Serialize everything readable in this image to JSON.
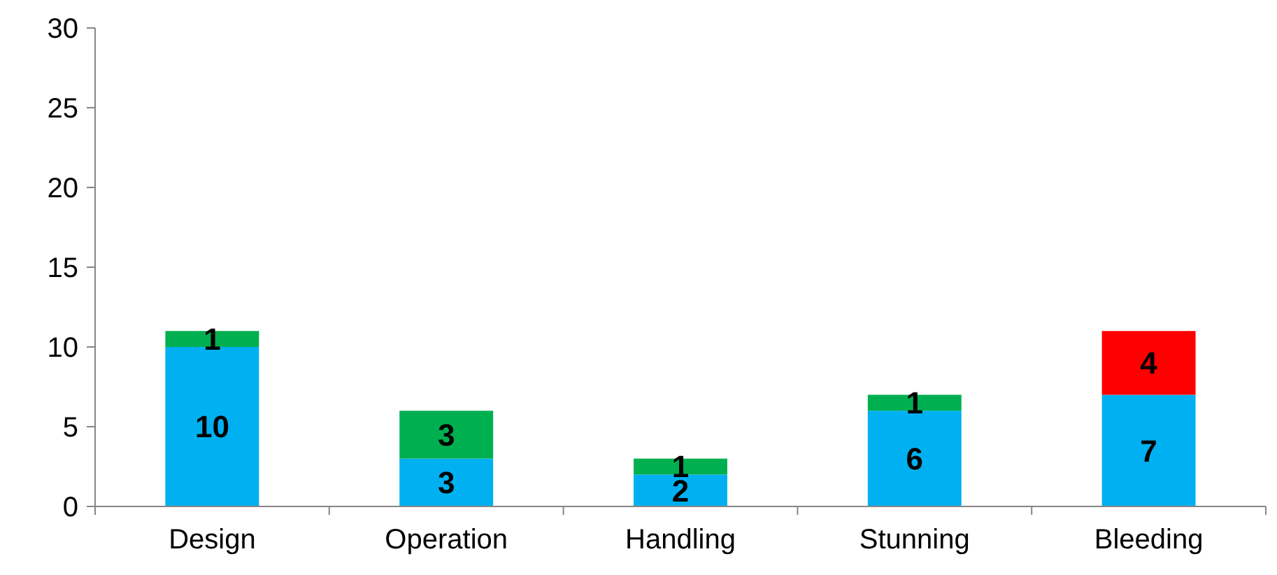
{
  "chart_data": {
    "type": "bar",
    "stacked": true,
    "categories": [
      "Design",
      "Operation",
      "Handling",
      "Stunning",
      "Bleeding"
    ],
    "series": [
      {
        "color": "#00b0f0",
        "values": [
          10,
          3,
          2,
          6,
          7
        ]
      },
      {
        "color": "#00b050",
        "values": [
          1,
          3,
          1,
          1,
          null
        ]
      },
      {
        "color": "#ff0000",
        "values": [
          null,
          null,
          null,
          null,
          4
        ]
      }
    ],
    "ylim": [
      0,
      30
    ],
    "yticks": [
      0,
      5,
      10,
      15,
      20,
      25,
      30
    ],
    "grid": false,
    "data_labels": true
  }
}
